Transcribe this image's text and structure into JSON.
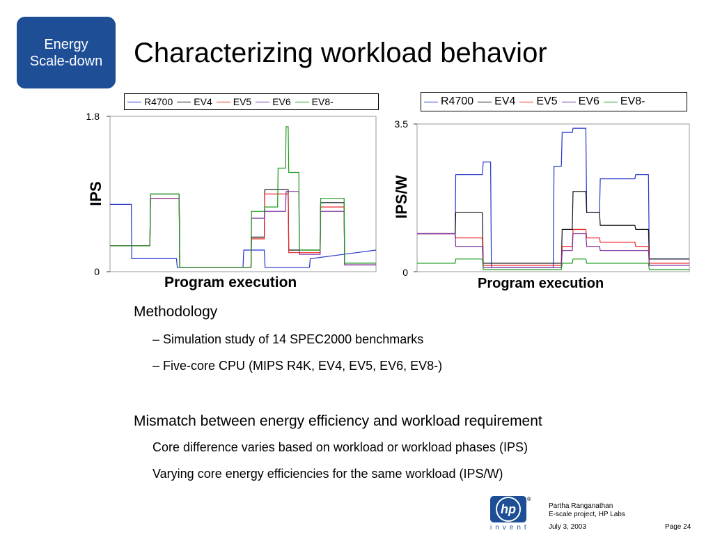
{
  "badge": {
    "line1": "Energy",
    "line2": "Scale-down"
  },
  "title": "Characterizing workload behavior",
  "colors": {
    "R4700": "#2233cc",
    "EV4": "#111111",
    "EV5": "#ee2222",
    "EV6": "#7a2aa0",
    "EV8-": "#1a9a1a"
  },
  "chart_data": [
    {
      "type": "line",
      "title": "",
      "xlabel": "Program execution",
      "ylabel": "IPS",
      "ylim": [
        0,
        1.8
      ],
      "yticks": [
        "1.8",
        "0"
      ],
      "legend_placement": "top",
      "series": [
        {
          "name": "R4700",
          "x": [
            0,
            8,
            8.2,
            25,
            25.3,
            50,
            50.3,
            58,
            58.3,
            75,
            75.3,
            100
          ],
          "y": [
            0.78,
            0.78,
            0.15,
            0.15,
            0.05,
            0.05,
            0.25,
            0.25,
            0.05,
            0.05,
            0.15,
            0.25
          ]
        },
        {
          "name": "EV4",
          "x": [
            0,
            15,
            15.2,
            26,
            26.2,
            53,
            53.2,
            58,
            58.2,
            67,
            67.2,
            79,
            79.2,
            88,
            88.2,
            100
          ],
          "y": [
            0.3,
            0.3,
            0.9,
            0.9,
            0.05,
            0.05,
            0.4,
            0.4,
            0.95,
            0.95,
            0.25,
            0.25,
            0.8,
            0.8,
            0.1,
            0.1
          ]
        },
        {
          "name": "EV5",
          "x": [
            0,
            15,
            15.2,
            26,
            26.2,
            53,
            53.2,
            58,
            58.2,
            67,
            67.2,
            79,
            79.2,
            88,
            88.2,
            100
          ],
          "y": [
            0.3,
            0.3,
            0.85,
            0.85,
            0.05,
            0.05,
            0.38,
            0.38,
            0.9,
            0.9,
            0.22,
            0.22,
            0.75,
            0.75,
            0.08,
            0.08
          ]
        },
        {
          "name": "EV6",
          "x": [
            0,
            15,
            15.2,
            26,
            26.2,
            53,
            53.2,
            58,
            58.2,
            66,
            66.2,
            71,
            71.2,
            79,
            79.2,
            88,
            88.2,
            100
          ],
          "y": [
            0.3,
            0.3,
            0.85,
            0.85,
            0.05,
            0.05,
            0.62,
            0.62,
            0.7,
            0.7,
            0.93,
            0.93,
            0.2,
            0.2,
            0.7,
            0.7,
            0.08,
            0.08
          ]
        },
        {
          "name": "EV8-",
          "x": [
            0,
            15,
            15.2,
            26,
            26.2,
            53,
            53.2,
            58,
            58.2,
            63,
            63.2,
            66,
            66.2,
            67,
            67.2,
            71,
            71.2,
            79,
            79.2,
            88,
            88.2,
            100
          ],
          "y": [
            0.3,
            0.3,
            0.9,
            0.9,
            0.05,
            0.05,
            0.7,
            0.7,
            0.75,
            0.75,
            1.2,
            1.2,
            1.68,
            1.68,
            1.15,
            1.15,
            0.25,
            0.25,
            0.85,
            0.85,
            0.1,
            0.1
          ]
        }
      ]
    },
    {
      "type": "line",
      "title": "",
      "xlabel": "Program execution",
      "ylabel": "IPS/W",
      "ylim": [
        0,
        3.5
      ],
      "yticks": [
        "3.5",
        "0"
      ],
      "legend_placement": "top",
      "series": [
        {
          "name": "R4700",
          "x": [
            0,
            14,
            14.2,
            24,
            24.3,
            27,
            27.3,
            50,
            50.3,
            53,
            53.3,
            57,
            57.3,
            62,
            62.3,
            67,
            67.3,
            80,
            80.3,
            85,
            85.3,
            100
          ],
          "y": [
            0.9,
            0.9,
            2.3,
            2.3,
            2.6,
            2.6,
            0.1,
            0.1,
            2.5,
            2.5,
            3.3,
            3.3,
            3.4,
            3.4,
            1.4,
            1.4,
            2.2,
            2.2,
            2.3,
            2.3,
            0.3,
            0.3
          ]
        },
        {
          "name": "EV4",
          "x": [
            0,
            14,
            14.2,
            24,
            24.3,
            53,
            53.3,
            57,
            57.3,
            62,
            62.3,
            67,
            67.3,
            80,
            80.3,
            85,
            85.3,
            100
          ],
          "y": [
            0.9,
            0.9,
            1.4,
            1.4,
            0.2,
            0.2,
            1.0,
            1.0,
            1.9,
            1.9,
            1.4,
            1.4,
            1.1,
            1.1,
            1.0,
            1.0,
            0.3,
            0.3
          ]
        },
        {
          "name": "EV5",
          "x": [
            0,
            14,
            14.2,
            24,
            24.3,
            53,
            53.3,
            57,
            57.3,
            62,
            62.3,
            67,
            67.3,
            80,
            80.3,
            85,
            85.3,
            100
          ],
          "y": [
            0.9,
            0.9,
            0.8,
            0.8,
            0.15,
            0.15,
            0.6,
            0.6,
            1.0,
            1.0,
            0.8,
            0.8,
            0.7,
            0.7,
            0.6,
            0.6,
            0.2,
            0.2
          ]
        },
        {
          "name": "EV6",
          "x": [
            0,
            14,
            14.2,
            24,
            24.3,
            53,
            53.3,
            57,
            57.3,
            62,
            62.3,
            67,
            67.3,
            80,
            80.3,
            85,
            85.3,
            100
          ],
          "y": [
            0.9,
            0.9,
            0.6,
            0.6,
            0.1,
            0.1,
            0.5,
            0.5,
            0.9,
            0.9,
            0.6,
            0.6,
            0.5,
            0.5,
            0.5,
            0.5,
            0.15,
            0.15
          ]
        },
        {
          "name": "EV8-",
          "x": [
            0,
            14,
            14.2,
            24,
            24.3,
            53,
            53.3,
            57,
            57.3,
            62,
            62.3,
            67,
            67.3,
            80,
            80.3,
            85,
            85.3,
            100
          ],
          "y": [
            0.2,
            0.2,
            0.3,
            0.3,
            0.05,
            0.05,
            0.2,
            0.2,
            0.3,
            0.3,
            0.2,
            0.2,
            0.2,
            0.2,
            0.2,
            0.2,
            0.05,
            0.05
          ]
        }
      ]
    }
  ],
  "body": {
    "methodology": "Methodology",
    "m1": "–  Simulation study of 14 SPEC2000 benchmarks",
    "m2": "–  Five-core CPU (MIPS R4K, EV4, EV5, EV6, EV8-)",
    "mismatch": "Mismatch between energy efficiency and workload requirement",
    "s1": "Core difference varies based on workload or workload phases (IPS)",
    "s2": "Varying core energy efficiencies for the same workload (IPS/W)"
  },
  "footer": {
    "author": "Partha Ranganathan",
    "project": "E-scale project, HP Labs",
    "date": "July 3, 2003",
    "page": "Page 24",
    "logo_text": "hp",
    "logo_tagline": "invent",
    "registered": "®"
  }
}
